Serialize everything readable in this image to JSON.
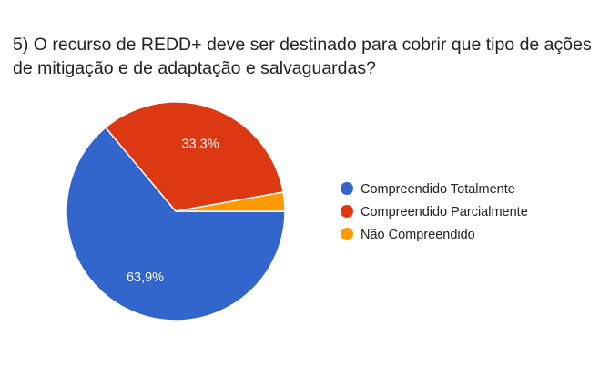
{
  "chart_data": {
    "type": "pie",
    "title": "5) O recurso de REDD+ deve ser destinado para cobrir que tipo de ações de mitigação e de adaptação e salvaguardas?",
    "legend_position": "right",
    "slices": [
      {
        "name": "Compreendido Totalmente",
        "value": 63.9,
        "label": "63,9%",
        "color": "#3366cc"
      },
      {
        "name": "Compreendido Parcialmente",
        "value": 33.3,
        "label": "33,3%",
        "color": "#dc3912"
      },
      {
        "name": "Não Compreendido",
        "value": 2.8,
        "label": "",
        "color": "#ff9900"
      }
    ]
  }
}
